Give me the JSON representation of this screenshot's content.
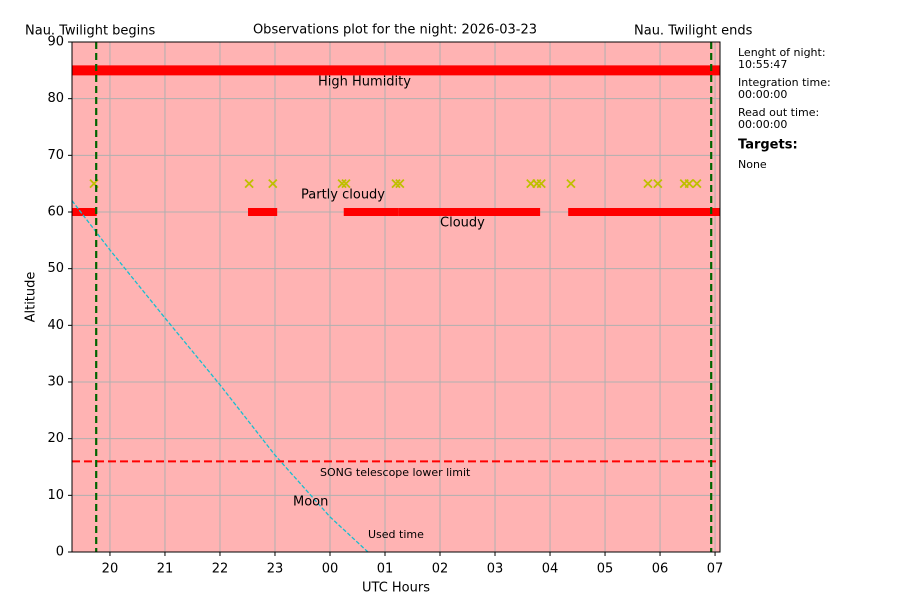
{
  "chart_data": {
    "type": "observation",
    "title": "Observations plot for the night: 2026-03-23",
    "twilight_begin_label": "Nau. Twilight begins",
    "twilight_end_label": "Nau. Twilight ends",
    "x_label": "UTC Hours",
    "y_label": "Altitude",
    "xlim": [
      19.31,
      31.09
    ],
    "xticks": [
      20,
      21,
      22,
      23,
      {
        "value": 24,
        "label": "00"
      },
      {
        "value": 25,
        "label": "01"
      },
      {
        "value": 26,
        "label": "02"
      },
      {
        "value": 27,
        "label": "03"
      },
      {
        "value": 28,
        "label": "04"
      },
      {
        "value": 29,
        "label": "05"
      },
      {
        "value": 30,
        "label": "06"
      },
      {
        "value": 31,
        "label": "07"
      }
    ],
    "ylim": [
      0,
      90
    ],
    "yticks": [
      0,
      10,
      20,
      30,
      40,
      50,
      60,
      70,
      80,
      90
    ],
    "grid": true,
    "background": "#ffb3b3",
    "twilight": {
      "begin": 19.75,
      "end": 30.93,
      "color": "#006400"
    },
    "humidity": {
      "label": "High Humidity",
      "altitude": 85,
      "color": "#ff0000"
    },
    "clouds": {
      "label_partly": "Partly cloudy",
      "label_cloudy": "Cloudy",
      "altitude": 60,
      "color": "#ff0000",
      "segments": [
        [
          19.31,
          19.76
        ],
        [
          22.51,
          23.04
        ],
        [
          24.25,
          25.24
        ],
        [
          25.24,
          27.82
        ],
        [
          28.33,
          31.09
        ]
      ]
    },
    "markers": {
      "altitude": 65,
      "color": "#bfbf00",
      "x": [
        19.71,
        22.53,
        22.96,
        24.22,
        24.29,
        25.2,
        25.27,
        27.65,
        27.76,
        27.84,
        28.38,
        29.78,
        29.96,
        30.44,
        30.53,
        30.67
      ]
    },
    "moon": {
      "label": "Moon",
      "color": "#17becf",
      "x": [
        19.31,
        20,
        21,
        22,
        23,
        24,
        24.69
      ],
      "values": [
        62,
        53.3,
        41.3,
        29.5,
        17.1,
        6.2,
        0
      ]
    },
    "lower_limit": {
      "label": "SONG telescope lower limit",
      "value": 16,
      "color": "#ff0000"
    },
    "used_time_label": "Used time"
  },
  "side_panel": {
    "night_label": "Lenght of night:",
    "night_value": "10:55:47",
    "integration_label": "Integration time:",
    "integration_value": "00:00:00",
    "readout_label": "Read out time:",
    "readout_value": "00:00:00",
    "targets_label": "Targets:",
    "targets_value": "None"
  }
}
